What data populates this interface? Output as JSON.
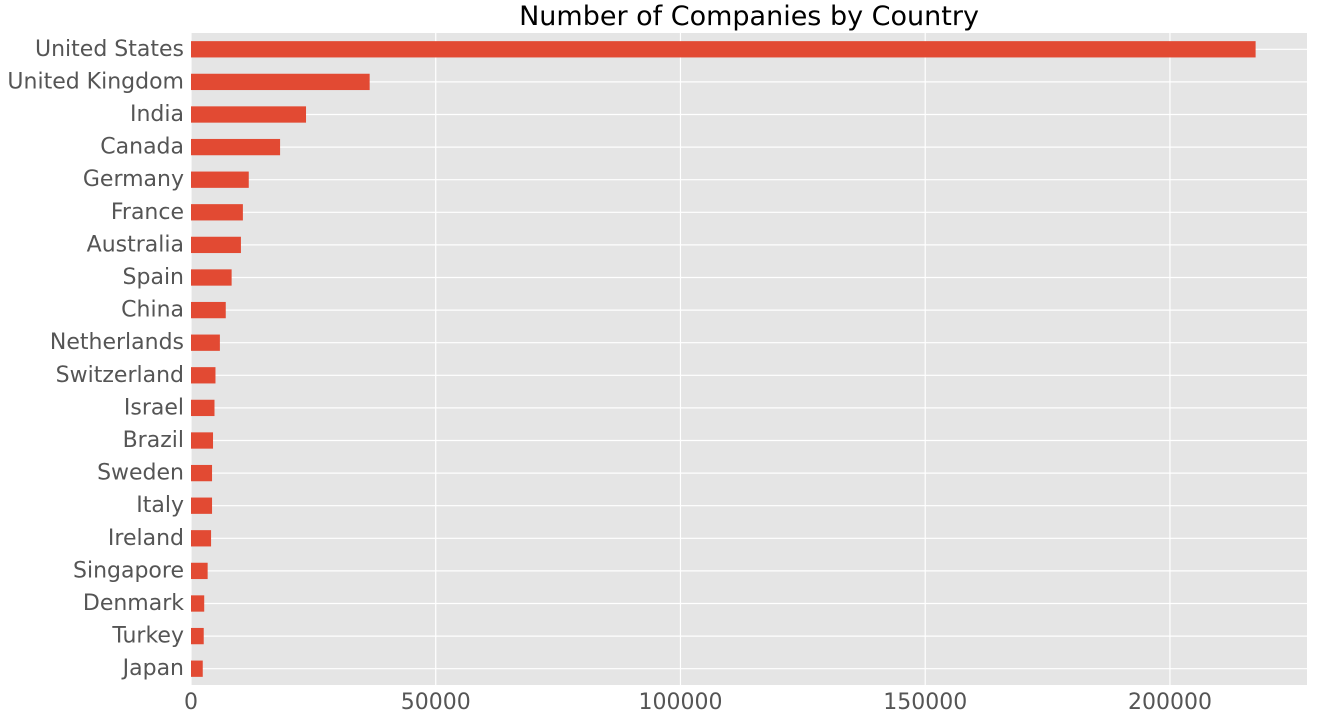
{
  "chart_data": {
    "type": "bar",
    "orientation": "horizontal",
    "title": "Number of Companies by Country",
    "xlabel": "",
    "ylabel": "",
    "categories": [
      "United States",
      "United Kingdom",
      "India",
      "Canada",
      "Germany",
      "France",
      "Australia",
      "Spain",
      "China",
      "Netherlands",
      "Switzerland",
      "Israel",
      "Brazil",
      "Sweden",
      "Italy",
      "Ireland",
      "Singapore",
      "Denmark",
      "Turkey",
      "Japan"
    ],
    "values": [
      217500,
      36500,
      23500,
      18200,
      11800,
      10600,
      10200,
      8300,
      7100,
      5900,
      5000,
      4800,
      4500,
      4300,
      4300,
      4100,
      3400,
      2700,
      2600,
      2400
    ],
    "xlim": [
      0,
      228000
    ],
    "xticks": [
      0,
      50000,
      100000,
      150000,
      200000
    ],
    "xtick_labels": [
      "0",
      "50000",
      "100000",
      "150000",
      "200000"
    ],
    "grid": true,
    "colors": {
      "bar": "#E24A33",
      "background": "#E5E5E5",
      "grid": "#FFFFFF",
      "tick_text": "#555555",
      "title_text": "#000000"
    }
  }
}
